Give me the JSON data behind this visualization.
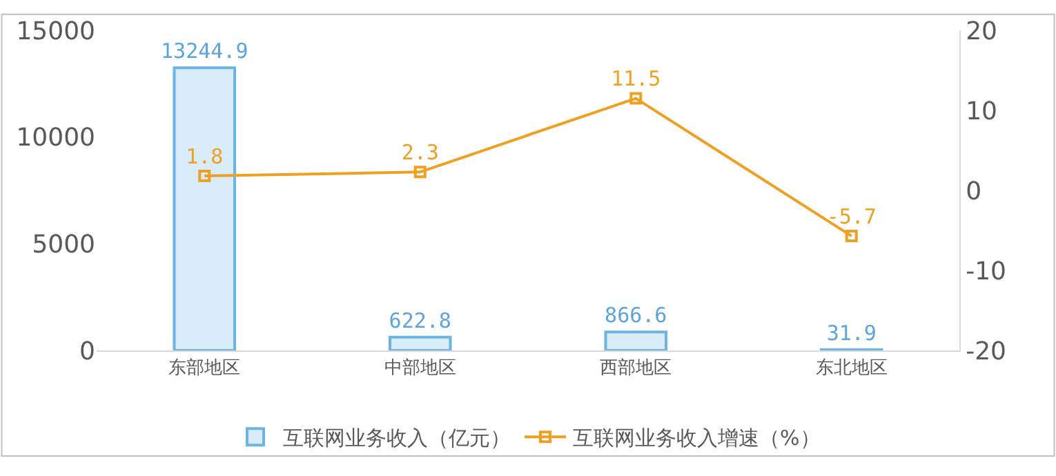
{
  "chart_data": {
    "type": "bar",
    "categories": [
      "东部地区",
      "中部地区",
      "西部地区",
      "东北地区"
    ],
    "series": [
      {
        "name": "互联网业务收入（亿元）",
        "color": "#d9ecfa",
        "values": [
          13244.9,
          622.8,
          866.6,
          31.9
        ]
      },
      {
        "name": "互联网业务收入增速（%）",
        "type": "line",
        "axis": "y2",
        "color": "#f0a020",
        "marker": "square",
        "values": [
          1.8,
          2.3,
          11.5,
          -5.7
        ]
      }
    ],
    "ylim": [
      0,
      15000
    ],
    "yticks": [
      0,
      5000,
      10000,
      15000
    ],
    "y2lim": [
      -20,
      20
    ],
    "y2ticks": [
      -20,
      -10,
      0,
      10,
      20
    ],
    "data_labels": true,
    "legend": "bottom"
  }
}
